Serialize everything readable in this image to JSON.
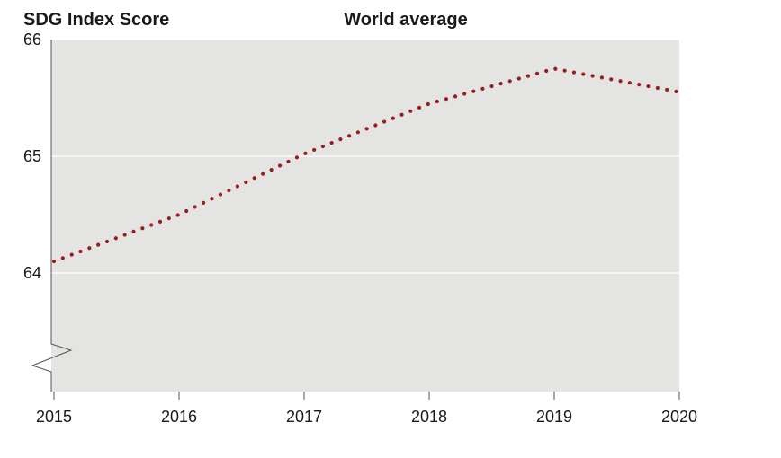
{
  "chart_data": {
    "type": "line",
    "title": "World average",
    "ylabel": "SDG Index Score",
    "xlabel": "",
    "x": [
      "2015",
      "2016",
      "2017",
      "2018",
      "2019",
      "2020"
    ],
    "series": [
      {
        "values": [
          64.1,
          64.5,
          65.02,
          65.45,
          65.75,
          65.55
        ]
      }
    ],
    "ylim": [
      63,
      66
    ],
    "yticks": [
      "64",
      "65",
      "66"
    ],
    "axis_break": true,
    "grid": true,
    "line_style": "dotted",
    "colors": {
      "plot_bg": "#e4e4e2",
      "line": "#9b1c1f",
      "grid": "#ffffff",
      "axis": "#555555"
    }
  }
}
